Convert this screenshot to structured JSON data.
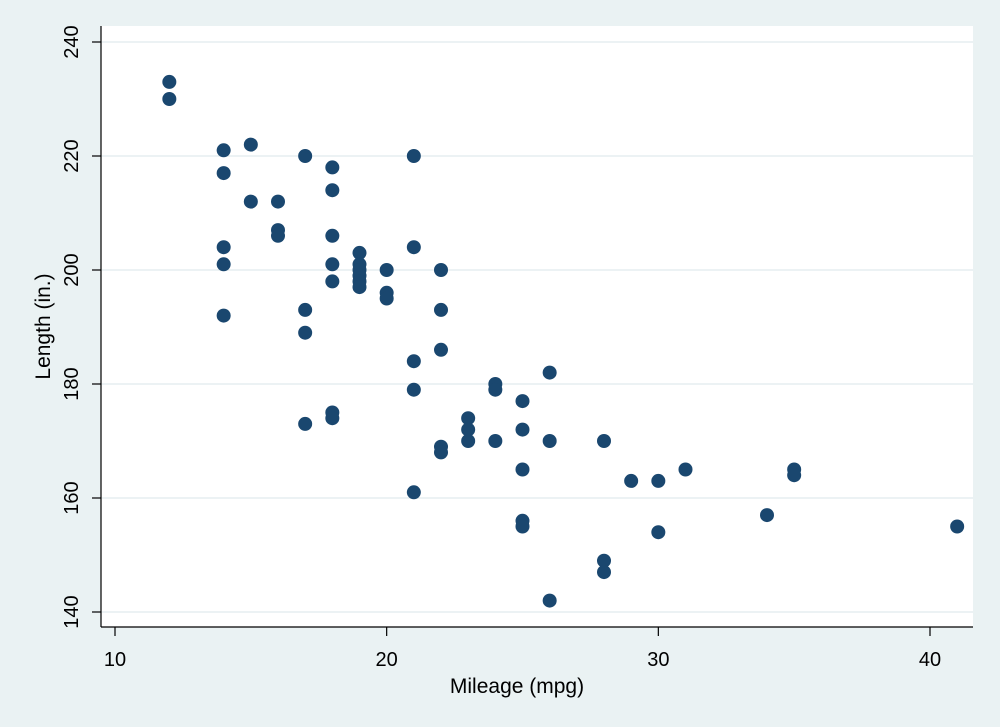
{
  "chart_data": {
    "type": "scatter",
    "title": "",
    "xlabel": "Mileage (mpg)",
    "ylabel": "Length (in.)",
    "xlim": [
      10,
      41
    ],
    "ylim": [
      140,
      240
    ],
    "xticks": [
      10,
      20,
      30,
      40
    ],
    "yticks": [
      140,
      160,
      180,
      200,
      220,
      240
    ],
    "x_tick_labels": [
      "10",
      "20",
      "30",
      "40"
    ],
    "y_tick_labels": [
      "140",
      "160",
      "180",
      "200",
      "220",
      "240"
    ],
    "grid": "horizontal",
    "legend": "none",
    "colors": {
      "background": "#eaf2f3",
      "plot_background": "#ffffff",
      "grid": "#e6eef0",
      "marker": "#1a476f",
      "axis": "#000000"
    },
    "points": [
      {
        "x": 12,
        "y": 233
      },
      {
        "x": 12,
        "y": 230
      },
      {
        "x": 14,
        "y": 221
      },
      {
        "x": 14,
        "y": 217
      },
      {
        "x": 14,
        "y": 204
      },
      {
        "x": 14,
        "y": 201
      },
      {
        "x": 14,
        "y": 192
      },
      {
        "x": 15,
        "y": 222
      },
      {
        "x": 15,
        "y": 212
      },
      {
        "x": 16,
        "y": 212
      },
      {
        "x": 16,
        "y": 207
      },
      {
        "x": 16,
        "y": 206
      },
      {
        "x": 17,
        "y": 220
      },
      {
        "x": 17,
        "y": 193
      },
      {
        "x": 17,
        "y": 189
      },
      {
        "x": 17,
        "y": 173
      },
      {
        "x": 18,
        "y": 218
      },
      {
        "x": 18,
        "y": 214
      },
      {
        "x": 18,
        "y": 206
      },
      {
        "x": 18,
        "y": 201
      },
      {
        "x": 18,
        "y": 198
      },
      {
        "x": 18,
        "y": 175
      },
      {
        "x": 18,
        "y": 174
      },
      {
        "x": 19,
        "y": 203
      },
      {
        "x": 19,
        "y": 201
      },
      {
        "x": 19,
        "y": 200
      },
      {
        "x": 19,
        "y": 199
      },
      {
        "x": 19,
        "y": 198
      },
      {
        "x": 19,
        "y": 197
      },
      {
        "x": 20,
        "y": 200
      },
      {
        "x": 20,
        "y": 196
      },
      {
        "x": 20,
        "y": 195
      },
      {
        "x": 21,
        "y": 220
      },
      {
        "x": 21,
        "y": 204
      },
      {
        "x": 21,
        "y": 184
      },
      {
        "x": 21,
        "y": 179
      },
      {
        "x": 21,
        "y": 161
      },
      {
        "x": 22,
        "y": 200
      },
      {
        "x": 22,
        "y": 193
      },
      {
        "x": 22,
        "y": 186
      },
      {
        "x": 22,
        "y": 169
      },
      {
        "x": 22,
        "y": 168
      },
      {
        "x": 23,
        "y": 174
      },
      {
        "x": 23,
        "y": 172
      },
      {
        "x": 23,
        "y": 170
      },
      {
        "x": 24,
        "y": 180
      },
      {
        "x": 24,
        "y": 179
      },
      {
        "x": 24,
        "y": 170
      },
      {
        "x": 25,
        "y": 177
      },
      {
        "x": 25,
        "y": 172
      },
      {
        "x": 25,
        "y": 165
      },
      {
        "x": 25,
        "y": 156
      },
      {
        "x": 25,
        "y": 155
      },
      {
        "x": 26,
        "y": 182
      },
      {
        "x": 26,
        "y": 170
      },
      {
        "x": 26,
        "y": 142
      },
      {
        "x": 28,
        "y": 170
      },
      {
        "x": 28,
        "y": 149
      },
      {
        "x": 28,
        "y": 147
      },
      {
        "x": 29,
        "y": 163
      },
      {
        "x": 30,
        "y": 163
      },
      {
        "x": 30,
        "y": 154
      },
      {
        "x": 31,
        "y": 165
      },
      {
        "x": 34,
        "y": 157
      },
      {
        "x": 35,
        "y": 165
      },
      {
        "x": 35,
        "y": 164
      },
      {
        "x": 41,
        "y": 155
      }
    ]
  }
}
